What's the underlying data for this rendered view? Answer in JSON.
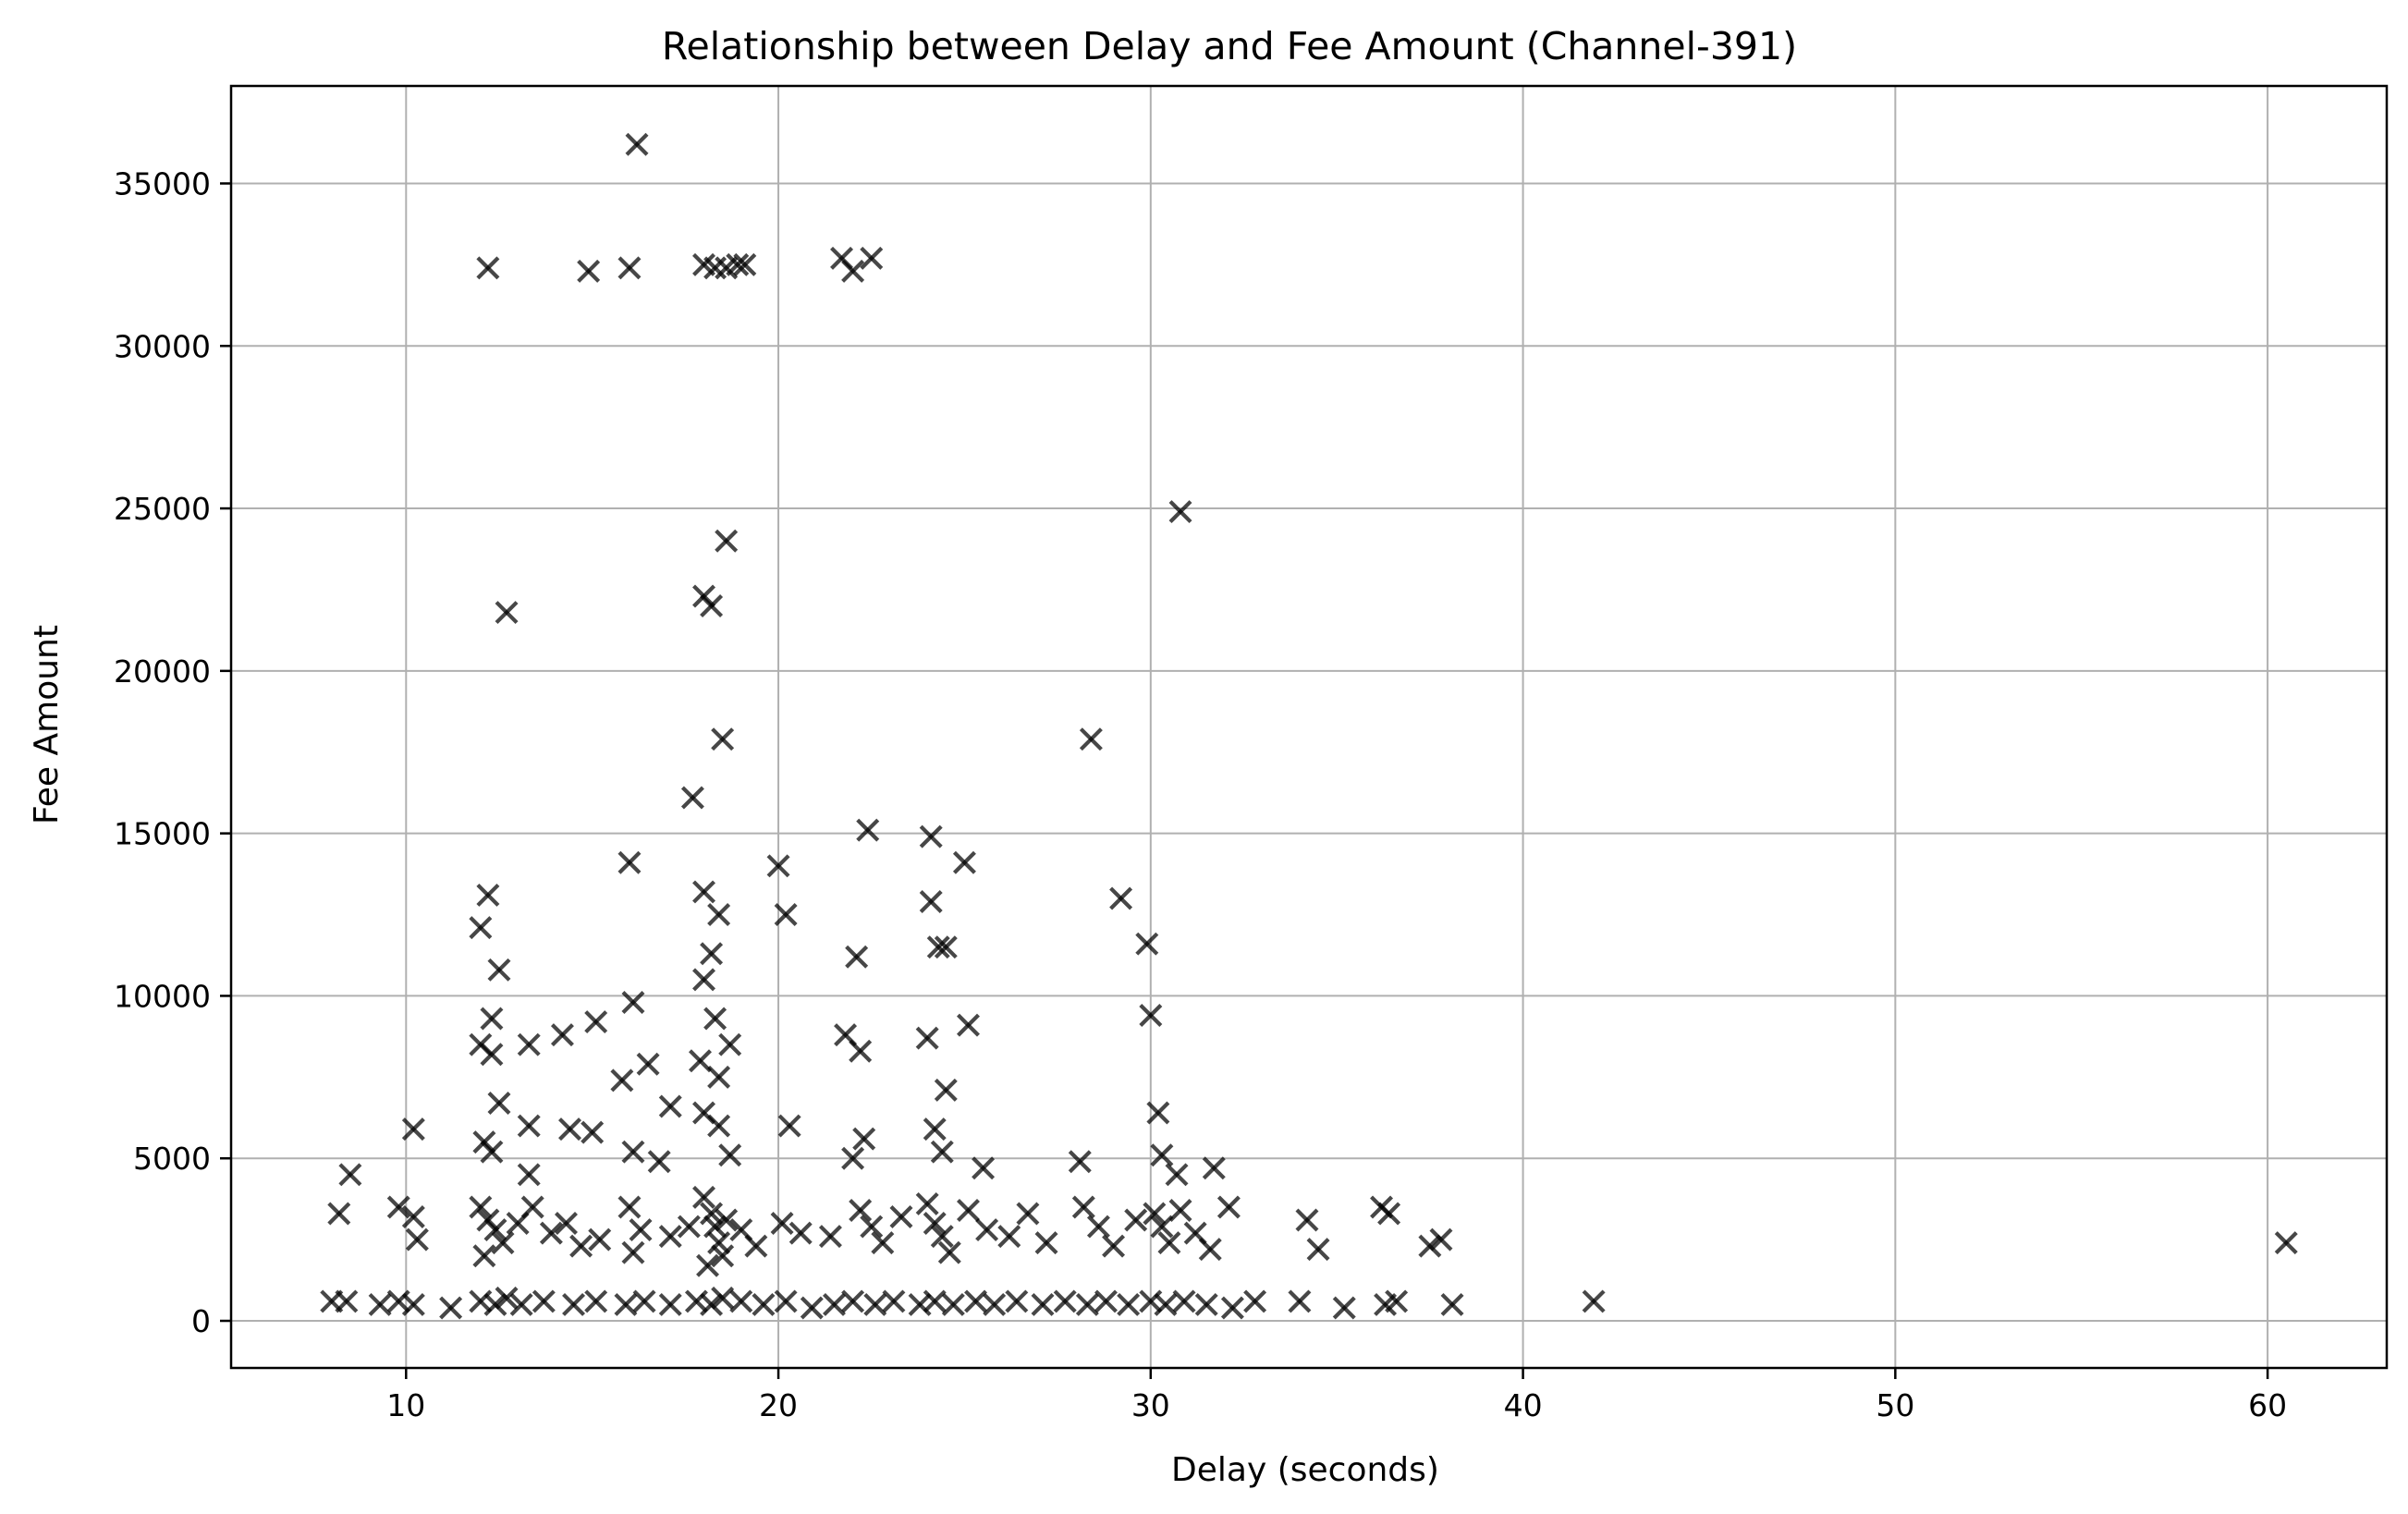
{
  "chart_data": {
    "type": "scatter",
    "title": "Relationship between Delay and Fee Amount (Channel-391)",
    "xlabel": "Delay (seconds)",
    "ylabel": "Fee Amount",
    "xlim": [
      5.3,
      63.2
    ],
    "ylim": [
      -1450,
      38000
    ],
    "xticks": [
      10,
      20,
      30,
      40,
      50,
      60
    ],
    "yticks": [
      0,
      5000,
      10000,
      15000,
      20000,
      25000,
      30000,
      35000
    ],
    "grid": true,
    "marker": "x",
    "marker_color": "#000000",
    "marker_alpha": 0.7,
    "series": [
      {
        "points": [
          [
            16.2,
            36200
          ],
          [
            12.2,
            32400
          ],
          [
            14.9,
            32300
          ],
          [
            16.0,
            32400
          ],
          [
            18.0,
            32500
          ],
          [
            18.3,
            32400
          ],
          [
            18.6,
            32400
          ],
          [
            18.9,
            32500
          ],
          [
            19.1,
            32500
          ],
          [
            21.7,
            32700
          ],
          [
            22.0,
            32300
          ],
          [
            22.5,
            32700
          ],
          [
            30.8,
            24900
          ],
          [
            18.6,
            24000
          ],
          [
            12.7,
            21800
          ],
          [
            18.0,
            22300
          ],
          [
            18.2,
            22000
          ],
          [
            18.5,
            17900
          ],
          [
            28.4,
            17900
          ],
          [
            17.7,
            16100
          ],
          [
            22.4,
            15100
          ],
          [
            24.1,
            14900
          ],
          [
            25.0,
            14100
          ],
          [
            16.0,
            14100
          ],
          [
            20.0,
            14000
          ],
          [
            12.2,
            13100
          ],
          [
            18.0,
            13200
          ],
          [
            29.2,
            13000
          ],
          [
            24.1,
            12900
          ],
          [
            18.4,
            12500
          ],
          [
            20.2,
            12500
          ],
          [
            12.0,
            12100
          ],
          [
            24.3,
            11500
          ],
          [
            24.5,
            11500
          ],
          [
            22.1,
            11200
          ],
          [
            18.2,
            11300
          ],
          [
            29.9,
            11600
          ],
          [
            12.5,
            10800
          ],
          [
            18.0,
            10500
          ],
          [
            16.1,
            9800
          ],
          [
            12.3,
            9300
          ],
          [
            18.3,
            9300
          ],
          [
            25.1,
            9100
          ],
          [
            15.1,
            9200
          ],
          [
            30.0,
            9400
          ],
          [
            14.2,
            8800
          ],
          [
            21.8,
            8800
          ],
          [
            18.7,
            8500
          ],
          [
            12.0,
            8500
          ],
          [
            13.3,
            8500
          ],
          [
            22.2,
            8300
          ],
          [
            12.3,
            8200
          ],
          [
            17.9,
            8000
          ],
          [
            16.5,
            7900
          ],
          [
            24.0,
            8700
          ],
          [
            18.4,
            7500
          ],
          [
            15.8,
            7400
          ],
          [
            24.5,
            7100
          ],
          [
            17.1,
            6600
          ],
          [
            12.5,
            6700
          ],
          [
            30.2,
            6400
          ],
          [
            18.0,
            6400
          ],
          [
            18.4,
            6000
          ],
          [
            10.2,
            5900
          ],
          [
            13.3,
            6000
          ],
          [
            14.4,
            5900
          ],
          [
            15.0,
            5800
          ],
          [
            16.1,
            5200
          ],
          [
            16.8,
            4900
          ],
          [
            20.3,
            6000
          ],
          [
            22.3,
            5600
          ],
          [
            24.2,
            5900
          ],
          [
            24.4,
            5200
          ],
          [
            25.5,
            4700
          ],
          [
            28.1,
            4900
          ],
          [
            30.3,
            5100
          ],
          [
            31.7,
            4700
          ],
          [
            8.5,
            4500
          ],
          [
            12.1,
            5500
          ],
          [
            12.3,
            5200
          ],
          [
            18.7,
            5100
          ],
          [
            13.3,
            4500
          ],
          [
            22.0,
            5000
          ],
          [
            30.7,
            4500
          ],
          [
            8.2,
            3300
          ],
          [
            9.8,
            3500
          ],
          [
            10.2,
            3200
          ],
          [
            10.3,
            2500
          ],
          [
            12.0,
            3500
          ],
          [
            12.2,
            3100
          ],
          [
            12.4,
            2800
          ],
          [
            12.6,
            2400
          ],
          [
            12.1,
            2000
          ],
          [
            13.0,
            3000
          ],
          [
            13.4,
            3500
          ],
          [
            13.9,
            2700
          ],
          [
            14.3,
            3000
          ],
          [
            14.7,
            2300
          ],
          [
            15.2,
            2500
          ],
          [
            16.0,
            3500
          ],
          [
            16.3,
            2800
          ],
          [
            16.1,
            2100
          ],
          [
            17.1,
            2600
          ],
          [
            17.6,
            2900
          ],
          [
            18.0,
            3800
          ],
          [
            18.2,
            3300
          ],
          [
            18.3,
            2900
          ],
          [
            18.4,
            2400
          ],
          [
            18.5,
            2000
          ],
          [
            18.1,
            1700
          ],
          [
            18.6,
            3100
          ],
          [
            19.0,
            2800
          ],
          [
            19.4,
            2300
          ],
          [
            20.1,
            3000
          ],
          [
            20.6,
            2700
          ],
          [
            21.4,
            2600
          ],
          [
            22.2,
            3400
          ],
          [
            22.5,
            2900
          ],
          [
            22.8,
            2400
          ],
          [
            23.3,
            3200
          ],
          [
            24.0,
            3600
          ],
          [
            24.2,
            3000
          ],
          [
            24.4,
            2600
          ],
          [
            24.6,
            2100
          ],
          [
            25.1,
            3400
          ],
          [
            25.6,
            2800
          ],
          [
            26.2,
            2600
          ],
          [
            26.7,
            3300
          ],
          [
            27.2,
            2400
          ],
          [
            28.2,
            3500
          ],
          [
            28.6,
            2900
          ],
          [
            29.0,
            2300
          ],
          [
            29.6,
            3100
          ],
          [
            30.1,
            3300
          ],
          [
            30.3,
            2900
          ],
          [
            30.5,
            2400
          ],
          [
            30.8,
            3400
          ],
          [
            31.2,
            2700
          ],
          [
            31.6,
            2200
          ],
          [
            32.1,
            3500
          ],
          [
            34.2,
            3100
          ],
          [
            34.5,
            2200
          ],
          [
            36.2,
            3500
          ],
          [
            36.4,
            3300
          ],
          [
            37.5,
            2300
          ],
          [
            37.8,
            2500
          ],
          [
            60.5,
            2400
          ],
          [
            8.0,
            600
          ],
          [
            8.4,
            600
          ],
          [
            9.3,
            500
          ],
          [
            9.8,
            600
          ],
          [
            10.2,
            500
          ],
          [
            11.2,
            400
          ],
          [
            12.0,
            600
          ],
          [
            12.4,
            500
          ],
          [
            12.7,
            700
          ],
          [
            13.1,
            500
          ],
          [
            13.7,
            600
          ],
          [
            14.5,
            500
          ],
          [
            15.1,
            600
          ],
          [
            15.9,
            500
          ],
          [
            16.4,
            600
          ],
          [
            17.1,
            500
          ],
          [
            17.8,
            600
          ],
          [
            18.2,
            500
          ],
          [
            18.5,
            700
          ],
          [
            19.0,
            600
          ],
          [
            19.6,
            500
          ],
          [
            20.2,
            600
          ],
          [
            20.9,
            400
          ],
          [
            21.5,
            500
          ],
          [
            22.0,
            600
          ],
          [
            22.6,
            500
          ],
          [
            23.1,
            600
          ],
          [
            23.8,
            500
          ],
          [
            24.2,
            600
          ],
          [
            24.7,
            500
          ],
          [
            25.3,
            600
          ],
          [
            25.8,
            500
          ],
          [
            26.4,
            600
          ],
          [
            27.1,
            500
          ],
          [
            27.7,
            600
          ],
          [
            28.3,
            500
          ],
          [
            28.8,
            600
          ],
          [
            29.4,
            500
          ],
          [
            30.0,
            600
          ],
          [
            30.4,
            500
          ],
          [
            30.9,
            600
          ],
          [
            31.5,
            500
          ],
          [
            32.2,
            400
          ],
          [
            32.8,
            600
          ],
          [
            34.0,
            600
          ],
          [
            35.2,
            400
          ],
          [
            36.3,
            500
          ],
          [
            36.6,
            600
          ],
          [
            38.1,
            500
          ],
          [
            41.9,
            600
          ]
        ]
      }
    ]
  }
}
